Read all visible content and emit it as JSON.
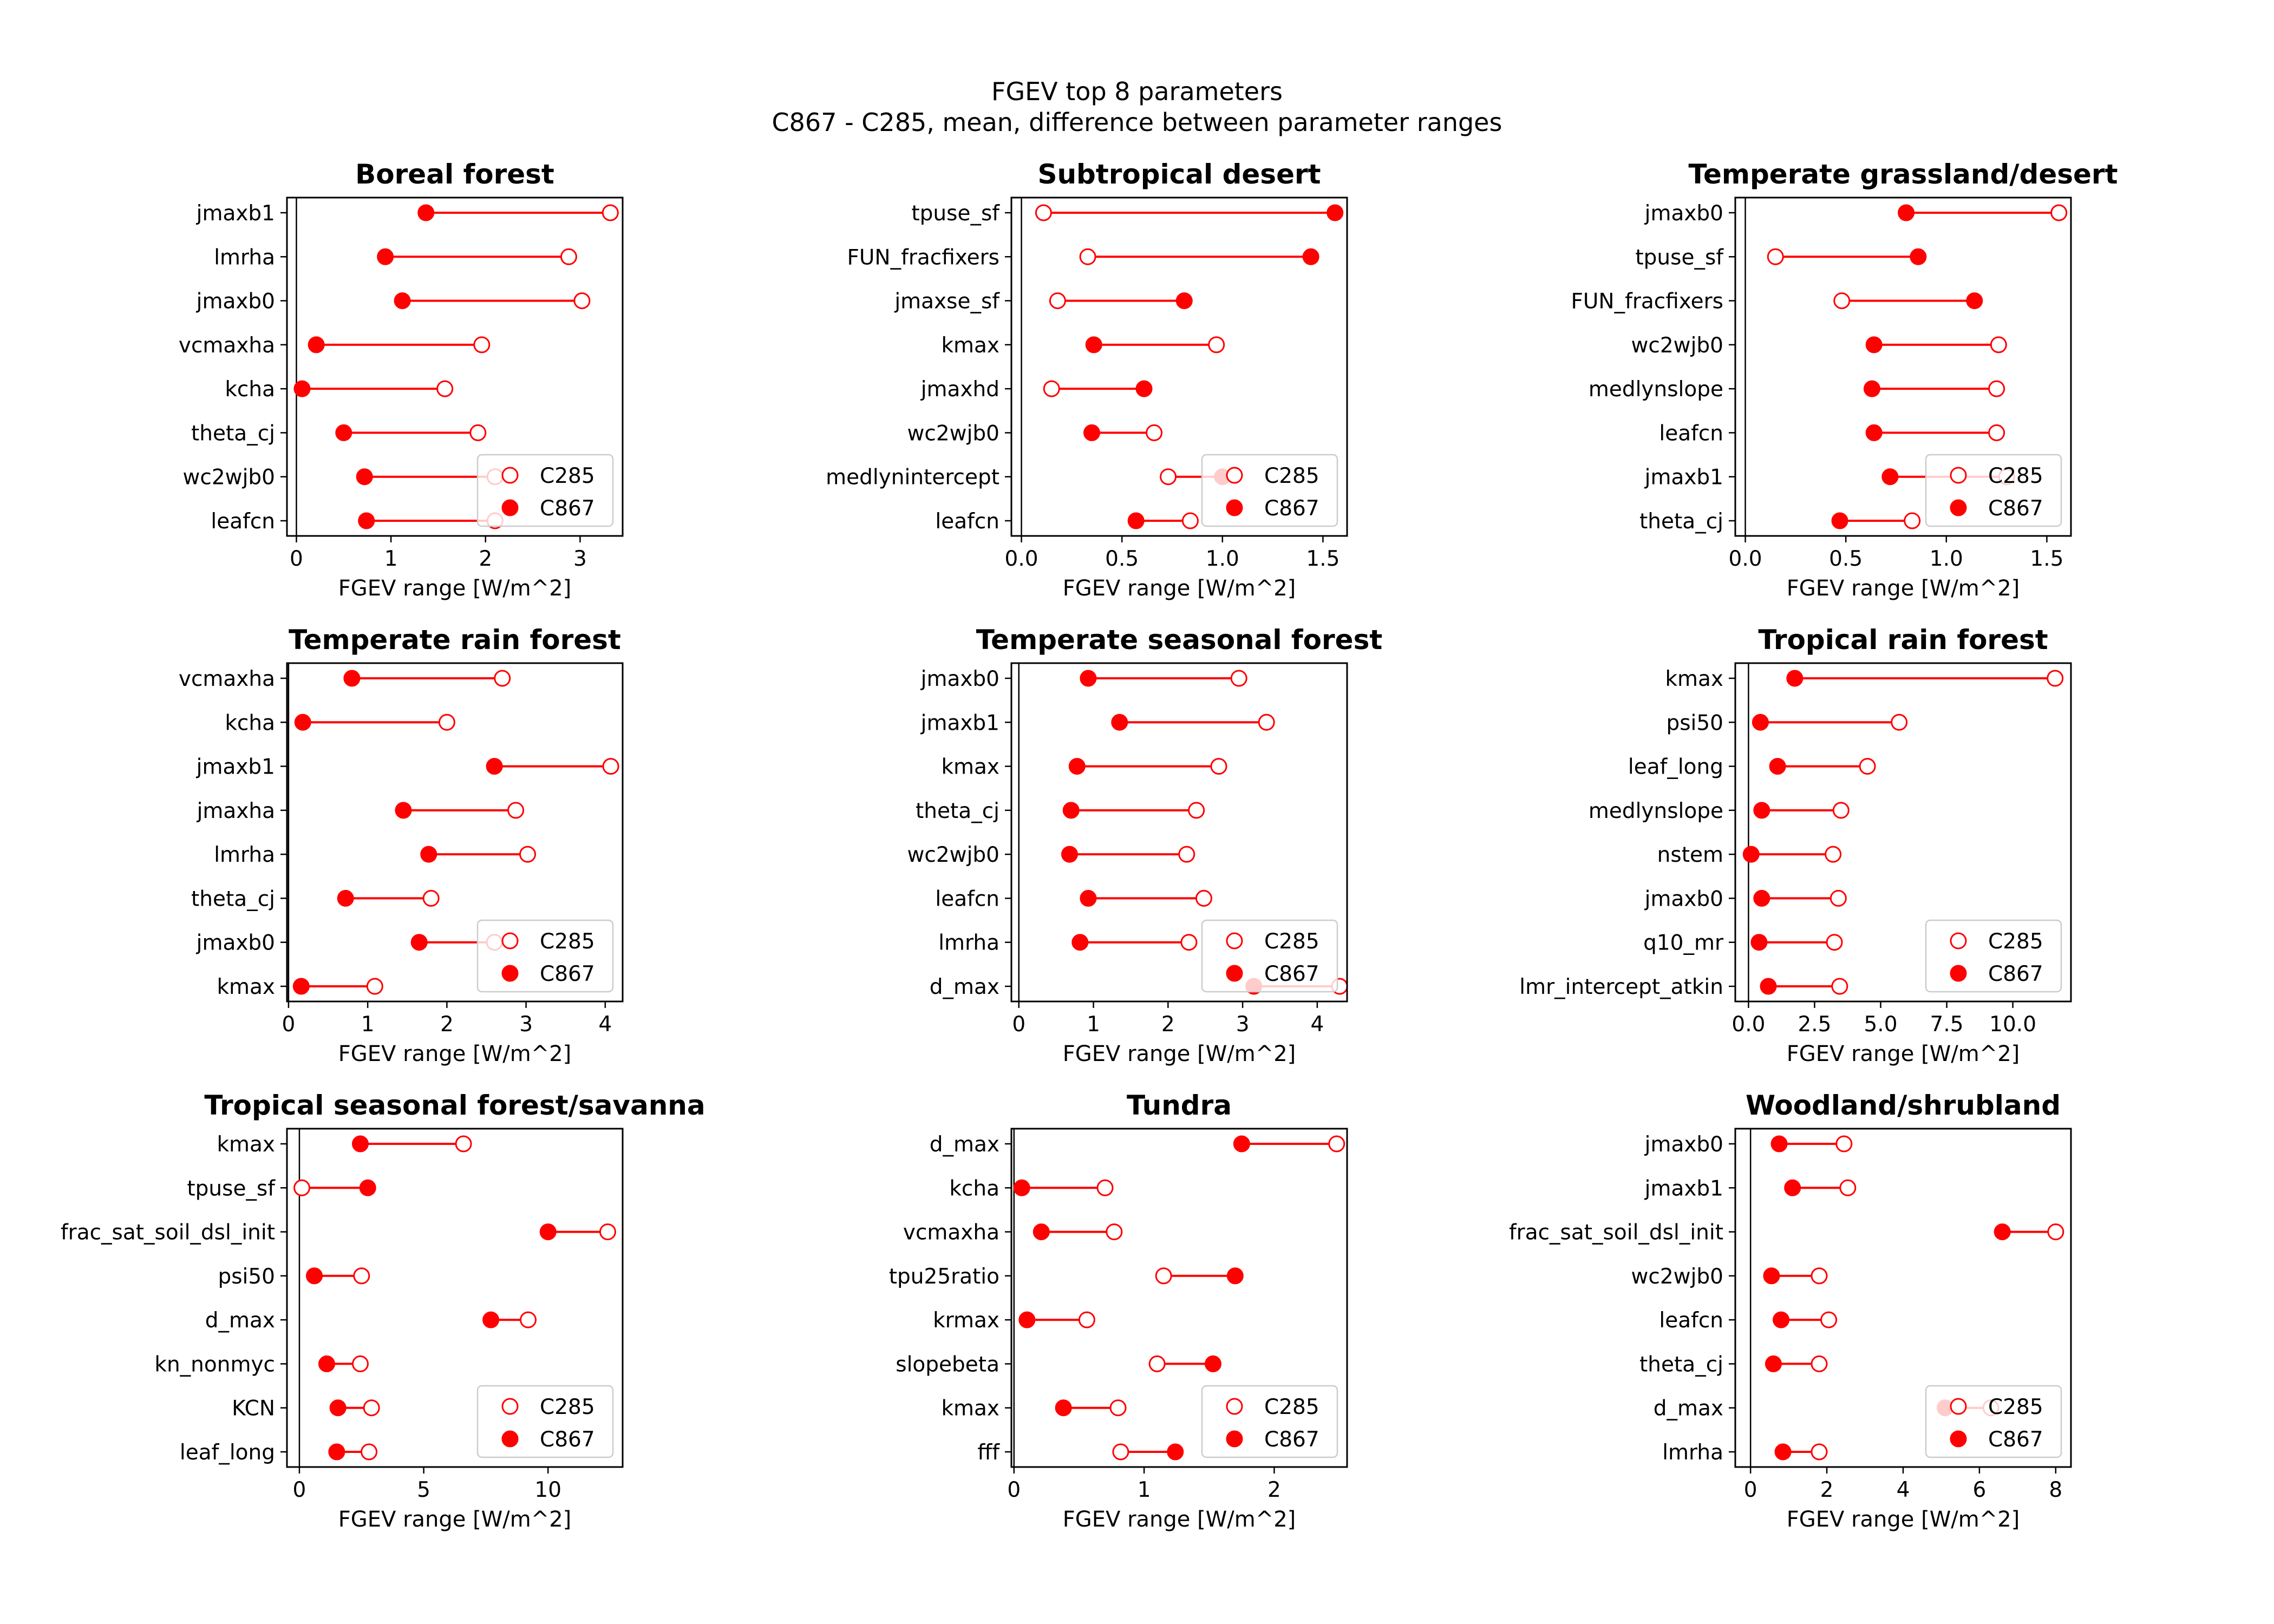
{
  "figure": {
    "title_line1": "FGEV top 8 parameters",
    "title_line2": "C867 - C285, mean, difference between parameter ranges"
  },
  "colors": {
    "marker": "#ff0000",
    "axis": "#000000"
  },
  "chart_data": [
    {
      "type": "dumbbell",
      "title": "Boreal forest",
      "xlabel": "FGEV range [W/m^2]",
      "xlim": [
        -0.1,
        3.45
      ],
      "xticks": [
        0,
        1,
        2,
        3
      ],
      "xtick_labels": [
        "0",
        "1",
        "2",
        "3"
      ],
      "categories": [
        "jmaxb1",
        "lmrha",
        "jmaxb0",
        "vcmaxha",
        "kcha",
        "theta_cj",
        "wc2wjb0",
        "leafcn"
      ],
      "series": [
        {
          "name": "C285",
          "marker": "open",
          "values": [
            3.32,
            2.88,
            3.02,
            1.96,
            1.57,
            1.92,
            2.1,
            2.1
          ]
        },
        {
          "name": "C867",
          "marker": "filled",
          "values": [
            1.37,
            0.94,
            1.12,
            0.21,
            0.06,
            0.5,
            0.72,
            0.74
          ]
        }
      ],
      "legend": "lower right"
    },
    {
      "type": "dumbbell",
      "title": "Subtropical desert",
      "xlabel": "FGEV range [W/m^2]",
      "xlim": [
        -0.05,
        1.62
      ],
      "xticks": [
        0.0,
        0.5,
        1.0,
        1.5
      ],
      "xtick_labels": [
        "0.0",
        "0.5",
        "1.0",
        "1.5"
      ],
      "categories": [
        "tpuse_sf",
        "FUN_fracfixers",
        "jmaxse_sf",
        "kmax",
        "jmaxhd",
        "wc2wjb0",
        "medlynintercept",
        "leafcn"
      ],
      "series": [
        {
          "name": "C285",
          "marker": "open",
          "values": [
            0.11,
            0.33,
            0.18,
            0.97,
            0.15,
            0.66,
            0.73,
            0.84
          ]
        },
        {
          "name": "C867",
          "marker": "filled",
          "values": [
            1.56,
            1.44,
            0.81,
            0.36,
            0.61,
            0.35,
            1.0,
            0.57
          ]
        }
      ],
      "legend": "lower right"
    },
    {
      "type": "dumbbell",
      "title": "Temperate grassland/desert",
      "xlabel": "FGEV range [W/m^2]",
      "xlim": [
        -0.05,
        1.62
      ],
      "xticks": [
        0.0,
        0.5,
        1.0,
        1.5
      ],
      "xtick_labels": [
        "0.0",
        "0.5",
        "1.0",
        "1.5"
      ],
      "categories": [
        "jmaxb0",
        "tpuse_sf",
        "FUN_fracfixers",
        "wc2wjb0",
        "medlynslope",
        "leafcn",
        "jmaxb1",
        "theta_cj"
      ],
      "series": [
        {
          "name": "C285",
          "marker": "open",
          "values": [
            1.56,
            0.15,
            0.48,
            1.26,
            1.25,
            1.25,
            1.3,
            0.83
          ]
        },
        {
          "name": "C867",
          "marker": "filled",
          "values": [
            0.8,
            0.86,
            1.14,
            0.64,
            0.63,
            0.64,
            0.72,
            0.47
          ]
        }
      ],
      "legend": "lower right"
    },
    {
      "type": "dumbbell",
      "title": "Temperate rain forest",
      "xlabel": "FGEV range [W/m^2]",
      "xlim": [
        -0.02,
        4.22
      ],
      "xticks": [
        0,
        1,
        2,
        3,
        4
      ],
      "xtick_labels": [
        "0",
        "1",
        "2",
        "3",
        "4"
      ],
      "categories": [
        "vcmaxha",
        "kcha",
        "jmaxb1",
        "jmaxha",
        "lmrha",
        "theta_cj",
        "jmaxb0",
        "kmax"
      ],
      "series": [
        {
          "name": "C285",
          "marker": "open",
          "values": [
            2.7,
            2.0,
            4.07,
            2.87,
            3.02,
            1.8,
            2.6,
            1.09
          ]
        },
        {
          "name": "C867",
          "marker": "filled",
          "values": [
            0.8,
            0.18,
            2.6,
            1.45,
            1.77,
            0.72,
            1.65,
            0.16
          ]
        }
      ],
      "legend": "lower right"
    },
    {
      "type": "dumbbell",
      "title": "Temperate seasonal forest",
      "xlabel": "FGEV range [W/m^2]",
      "xlim": [
        -0.1,
        4.4
      ],
      "xticks": [
        0,
        1,
        2,
        3,
        4
      ],
      "xtick_labels": [
        "0",
        "1",
        "2",
        "3",
        "4"
      ],
      "categories": [
        "jmaxb0",
        "jmaxb1",
        "kmax",
        "theta_cj",
        "wc2wjb0",
        "leafcn",
        "lmrha",
        "d_max"
      ],
      "series": [
        {
          "name": "C285",
          "marker": "open",
          "values": [
            2.95,
            3.32,
            2.68,
            2.38,
            2.25,
            2.48,
            2.28,
            4.3
          ]
        },
        {
          "name": "C867",
          "marker": "filled",
          "values": [
            0.93,
            1.35,
            0.78,
            0.7,
            0.68,
            0.93,
            0.82,
            3.15
          ]
        }
      ],
      "legend": "lower right"
    },
    {
      "type": "dumbbell",
      "title": "Tropical rain forest",
      "xlabel": "FGEV range [W/m^2]",
      "xlim": [
        -0.5,
        12.2
      ],
      "xticks": [
        0.0,
        2.5,
        5.0,
        7.5,
        10.0
      ],
      "xtick_labels": [
        "0.0",
        "2.5",
        "5.0",
        "7.5",
        "10.0"
      ],
      "categories": [
        "kmax",
        "psi50",
        "leaf_long",
        "medlynslope",
        "nstem",
        "jmaxb0",
        "q10_mr",
        "lmr_intercept_atkin"
      ],
      "series": [
        {
          "name": "C285",
          "marker": "open",
          "values": [
            11.6,
            5.7,
            4.5,
            3.5,
            3.2,
            3.4,
            3.25,
            3.45
          ]
        },
        {
          "name": "C867",
          "marker": "filled",
          "values": [
            1.75,
            0.45,
            1.1,
            0.5,
            0.1,
            0.5,
            0.4,
            0.75
          ]
        }
      ],
      "legend": "lower right"
    },
    {
      "type": "dumbbell",
      "title": "Tropical seasonal forest/savanna",
      "xlabel": "FGEV range [W/m^2]",
      "xlim": [
        -0.5,
        13.0
      ],
      "xticks": [
        0,
        5,
        10
      ],
      "xtick_labels": [
        "0",
        "5",
        "10"
      ],
      "categories": [
        "kmax",
        "tpuse_sf",
        "frac_sat_soil_dsl_init",
        "psi50",
        "d_max",
        "kn_nonmyc",
        "KCN",
        "leaf_long"
      ],
      "series": [
        {
          "name": "C285",
          "marker": "open",
          "values": [
            6.6,
            0.1,
            12.4,
            2.5,
            9.2,
            2.45,
            2.9,
            2.8
          ]
        },
        {
          "name": "C867",
          "marker": "filled",
          "values": [
            2.45,
            2.75,
            10.0,
            0.6,
            7.7,
            1.1,
            1.55,
            1.5
          ]
        }
      ],
      "legend": "lower right"
    },
    {
      "type": "dumbbell",
      "title": "Tundra",
      "xlabel": "FGEV range [W/m^2]",
      "xlim": [
        -0.02,
        2.56
      ],
      "xticks": [
        0,
        1,
        2
      ],
      "xtick_labels": [
        "0",
        "1",
        "2"
      ],
      "categories": [
        "d_max",
        "kcha",
        "vcmaxha",
        "tpu25ratio",
        "krmax",
        "slopebeta",
        "kmax",
        "fff"
      ],
      "series": [
        {
          "name": "C285",
          "marker": "open",
          "values": [
            2.48,
            0.7,
            0.77,
            1.15,
            0.56,
            1.1,
            0.8,
            0.82
          ]
        },
        {
          "name": "C867",
          "marker": "filled",
          "values": [
            1.75,
            0.06,
            0.21,
            1.7,
            0.1,
            1.53,
            0.38,
            1.24
          ]
        }
      ],
      "legend": "lower right"
    },
    {
      "type": "dumbbell",
      "title": "Woodland/shrubland",
      "xlabel": "FGEV range [W/m^2]",
      "xlim": [
        -0.4,
        8.4
      ],
      "xticks": [
        0,
        2,
        4,
        6,
        8
      ],
      "xtick_labels": [
        "0",
        "2",
        "4",
        "6",
        "8"
      ],
      "categories": [
        "jmaxb0",
        "jmaxb1",
        "frac_sat_soil_dsl_init",
        "wc2wjb0",
        "leafcn",
        "theta_cj",
        "d_max",
        "lmrha"
      ],
      "series": [
        {
          "name": "C285",
          "marker": "open",
          "values": [
            2.45,
            2.55,
            8.0,
            1.8,
            2.05,
            1.8,
            6.3,
            1.8
          ]
        },
        {
          "name": "C867",
          "marker": "filled",
          "values": [
            0.75,
            1.1,
            6.6,
            0.55,
            0.8,
            0.6,
            5.1,
            0.85
          ]
        }
      ],
      "legend": "lower right"
    }
  ]
}
